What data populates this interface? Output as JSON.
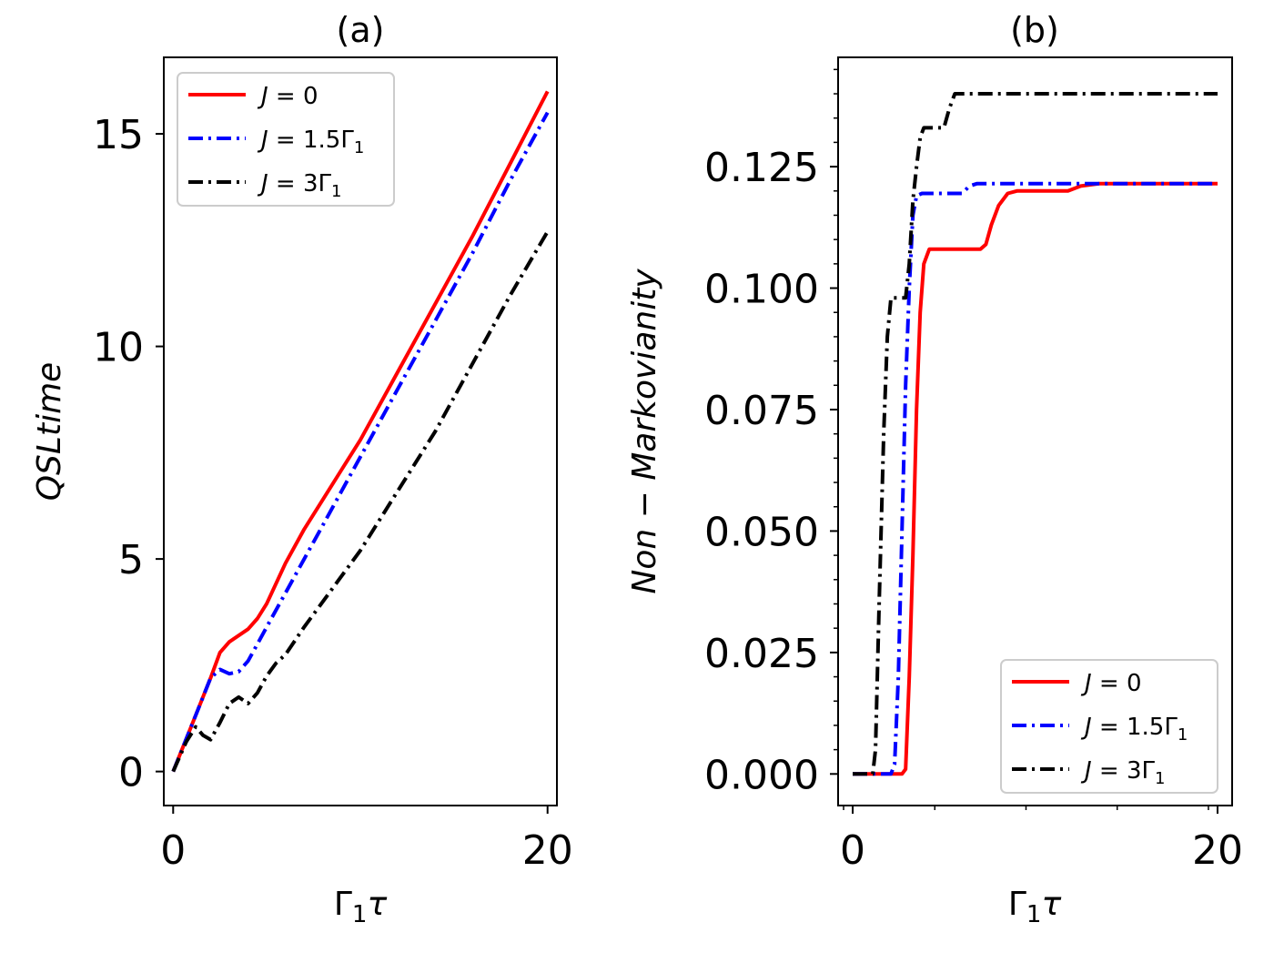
{
  "chart_data": [
    {
      "type": "line",
      "title": "(a)",
      "xlabel": "Γ₁τ",
      "ylabel": "QSLtime",
      "xlim": [
        -0.5,
        20.5
      ],
      "ylim": [
        -0.8,
        16.8
      ],
      "xticks": [
        0,
        20
      ],
      "xtick_labels": [
        "0",
        "20"
      ],
      "yticks": [
        0,
        5,
        10,
        15
      ],
      "ytick_labels": [
        "0",
        "5",
        "10",
        "15"
      ],
      "legend_position": "top-left",
      "series": [
        {
          "name": "J = 0",
          "label_main": "J = 0",
          "label_sub": "",
          "color": "#ff0000",
          "dash": "solid",
          "x": [
            0,
            1,
            2,
            2.5,
            3,
            3.5,
            4,
            4.5,
            5,
            6,
            7,
            8,
            9,
            10,
            12,
            14,
            16,
            18,
            20
          ],
          "y": [
            0,
            1.1,
            2.2,
            2.8,
            3.05,
            3.2,
            3.35,
            3.6,
            3.95,
            4.9,
            5.7,
            6.4,
            7.1,
            7.8,
            9.4,
            11.0,
            12.6,
            14.3,
            16.0
          ]
        },
        {
          "name": "J = 1.5Γ1",
          "label_main": "J = 1.5Γ",
          "label_sub": "1",
          "color": "#0000ff",
          "dash": "dashdot",
          "x": [
            0,
            1,
            2,
            2.5,
            3,
            3.5,
            4,
            4.5,
            5,
            6,
            7,
            8,
            9,
            10,
            12,
            14,
            16,
            18,
            20
          ],
          "y": [
            0,
            1.1,
            2.2,
            2.4,
            2.3,
            2.35,
            2.6,
            3.0,
            3.4,
            4.2,
            5.0,
            5.8,
            6.6,
            7.4,
            9.0,
            10.6,
            12.2,
            13.9,
            15.5
          ]
        },
        {
          "name": "J = 3Γ1",
          "label_main": "J = 3Γ",
          "label_sub": "1",
          "color": "#000000",
          "dash": "dashdot",
          "x": [
            0,
            0.7,
            1.2,
            1.6,
            2,
            2.5,
            3,
            3.5,
            4,
            4.5,
            5,
            5.5,
            6,
            7,
            8,
            9,
            10,
            12,
            14,
            16,
            18,
            20
          ],
          "y": [
            0,
            0.7,
            1.05,
            0.85,
            0.75,
            1.15,
            1.6,
            1.75,
            1.6,
            1.85,
            2.25,
            2.55,
            2.75,
            3.4,
            4.0,
            4.6,
            5.2,
            6.6,
            8.0,
            9.6,
            11.2,
            12.7
          ]
        }
      ]
    },
    {
      "type": "line",
      "title": "(b)",
      "xlabel": "Γ₁τ",
      "ylabel": "Non − Markovianity",
      "xlim": [
        -0.8,
        20.8
      ],
      "ylim": [
        -0.0065,
        0.1475
      ],
      "xticks": [
        0,
        20
      ],
      "xtick_labels": [
        "0",
        "20"
      ],
      "yticks": [
        0,
        0.025,
        0.05,
        0.075,
        0.1,
        0.125
      ],
      "ytick_labels": [
        "0.000",
        "0.025",
        "0.050",
        "0.075",
        "0.100",
        "0.125"
      ],
      "legend_position": "bottom-right",
      "series": [
        {
          "name": "J = 0",
          "label_main": "J = 0",
          "label_sub": "",
          "color": "#ff0000",
          "dash": "solid",
          "x": [
            0,
            2.7,
            2.9,
            3.1,
            3.3,
            3.5,
            3.7,
            3.9,
            4.2,
            5,
            6,
            7,
            7.3,
            7.6,
            8,
            8.5,
            9,
            10,
            11,
            11.8,
            12.5,
            13.5,
            15,
            20
          ],
          "y": [
            0,
            0,
            0.001,
            0.02,
            0.045,
            0.075,
            0.095,
            0.105,
            0.108,
            0.108,
            0.108,
            0.108,
            0.109,
            0.113,
            0.117,
            0.1195,
            0.12,
            0.12,
            0.12,
            0.12,
            0.121,
            0.1215,
            0.1215,
            0.1215
          ]
        },
        {
          "name": "J = 1.5Γ1",
          "label_main": "J = 1.5Γ",
          "label_sub": "1",
          "color": "#0000ff",
          "dash": "dashdot",
          "x": [
            0,
            2.1,
            2.3,
            2.5,
            2.7,
            2.9,
            3.1,
            3.3,
            3.5,
            3.8,
            4.5,
            6,
            6.4,
            6.8,
            8,
            20
          ],
          "y": [
            0,
            0,
            0.002,
            0.02,
            0.05,
            0.08,
            0.1,
            0.115,
            0.119,
            0.1195,
            0.1195,
            0.1195,
            0.121,
            0.1215,
            0.1215,
            0.1215
          ]
        },
        {
          "name": "J = 3Γ1",
          "label_main": "J = 3Γ",
          "label_sub": "1",
          "color": "#000000",
          "dash": "dashdot",
          "x": [
            0,
            1.1,
            1.25,
            1.45,
            1.7,
            1.9,
            2.1,
            2.6,
            2.9,
            3.1,
            3.3,
            3.5,
            3.7,
            3.9,
            4.2,
            5.0,
            5.3,
            5.6,
            6,
            20
          ],
          "y": [
            0,
            0,
            0.005,
            0.035,
            0.07,
            0.09,
            0.098,
            0.098,
            0.098,
            0.105,
            0.118,
            0.125,
            0.131,
            0.133,
            0.133,
            0.133,
            0.137,
            0.14,
            0.14,
            0.14
          ]
        }
      ]
    }
  ]
}
